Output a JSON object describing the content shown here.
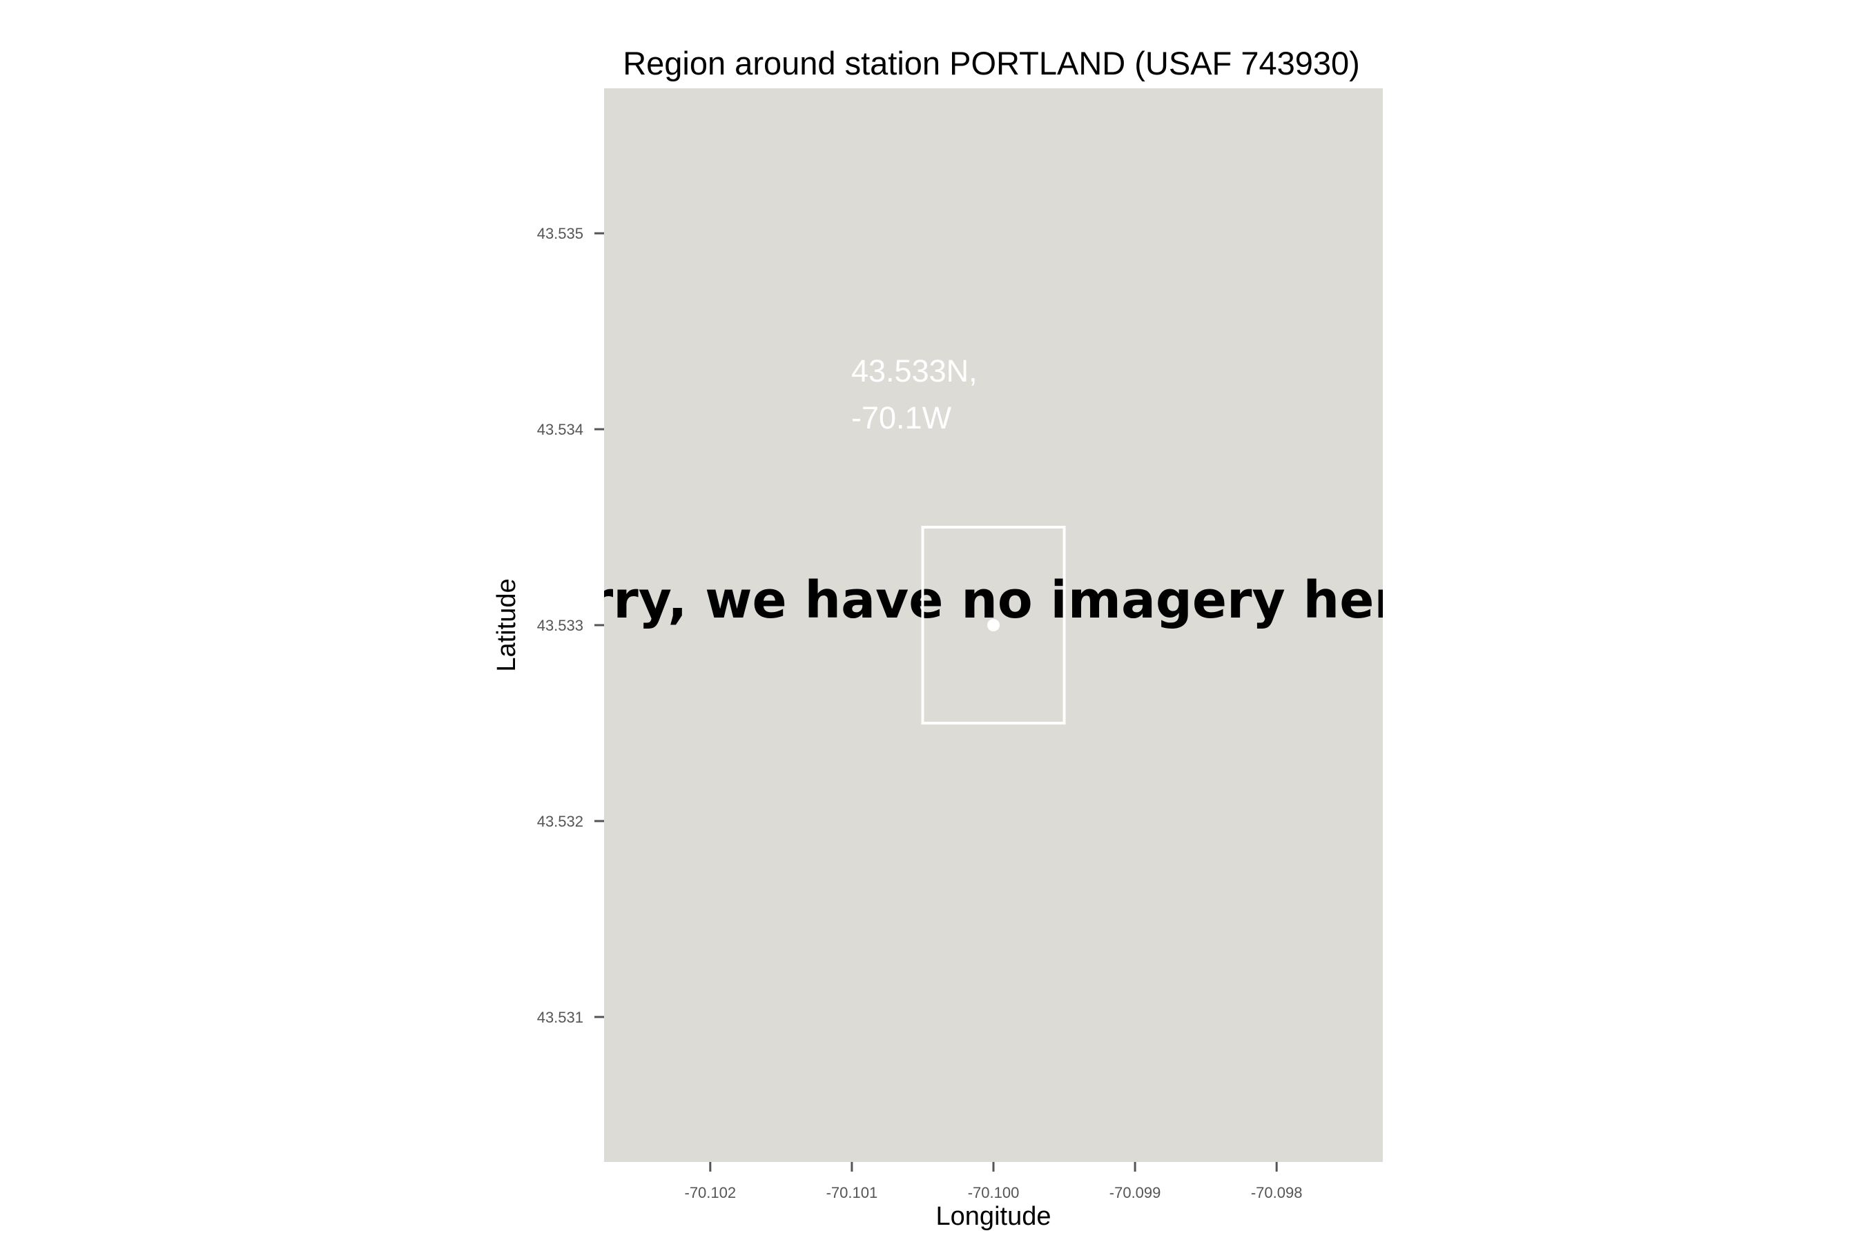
{
  "map": {
    "title": "Region around station PORTLAND (USAF 743930)",
    "xlabel": "Longitude",
    "ylabel": "Latitude",
    "tile_message": "orry, we have no imagery here",
    "coord_label": [
      "43.533N,",
      "-70.1W"
    ],
    "x_ticks": [
      -70.102,
      -70.101,
      -70.1,
      -70.099,
      -70.098
    ],
    "x_tick_labels": [
      "-70.102",
      "-70.101",
      "-70.100",
      "-70.099",
      "-70.098"
    ],
    "y_ticks": [
      43.535,
      43.534,
      43.533,
      43.532,
      43.531
    ],
    "y_tick_labels": [
      "43.535",
      "43.534",
      "43.533",
      "43.532",
      "43.531"
    ],
    "xlim": [
      -70.10275,
      -70.09725
    ],
    "ylim": [
      43.53026,
      43.53574
    ],
    "station": {
      "lon": -70.1,
      "lat": 43.533
    },
    "box": {
      "lon_min": -70.1005,
      "lon_max": -70.0995,
      "lat_min": 43.5325,
      "lat_max": 43.5335
    },
    "colors": {
      "panel_bg": "#dcdbd6",
      "marker": "#ffffff",
      "box_stroke": "#ffffff",
      "tick": "#555555",
      "tile_text": "#000000"
    }
  }
}
